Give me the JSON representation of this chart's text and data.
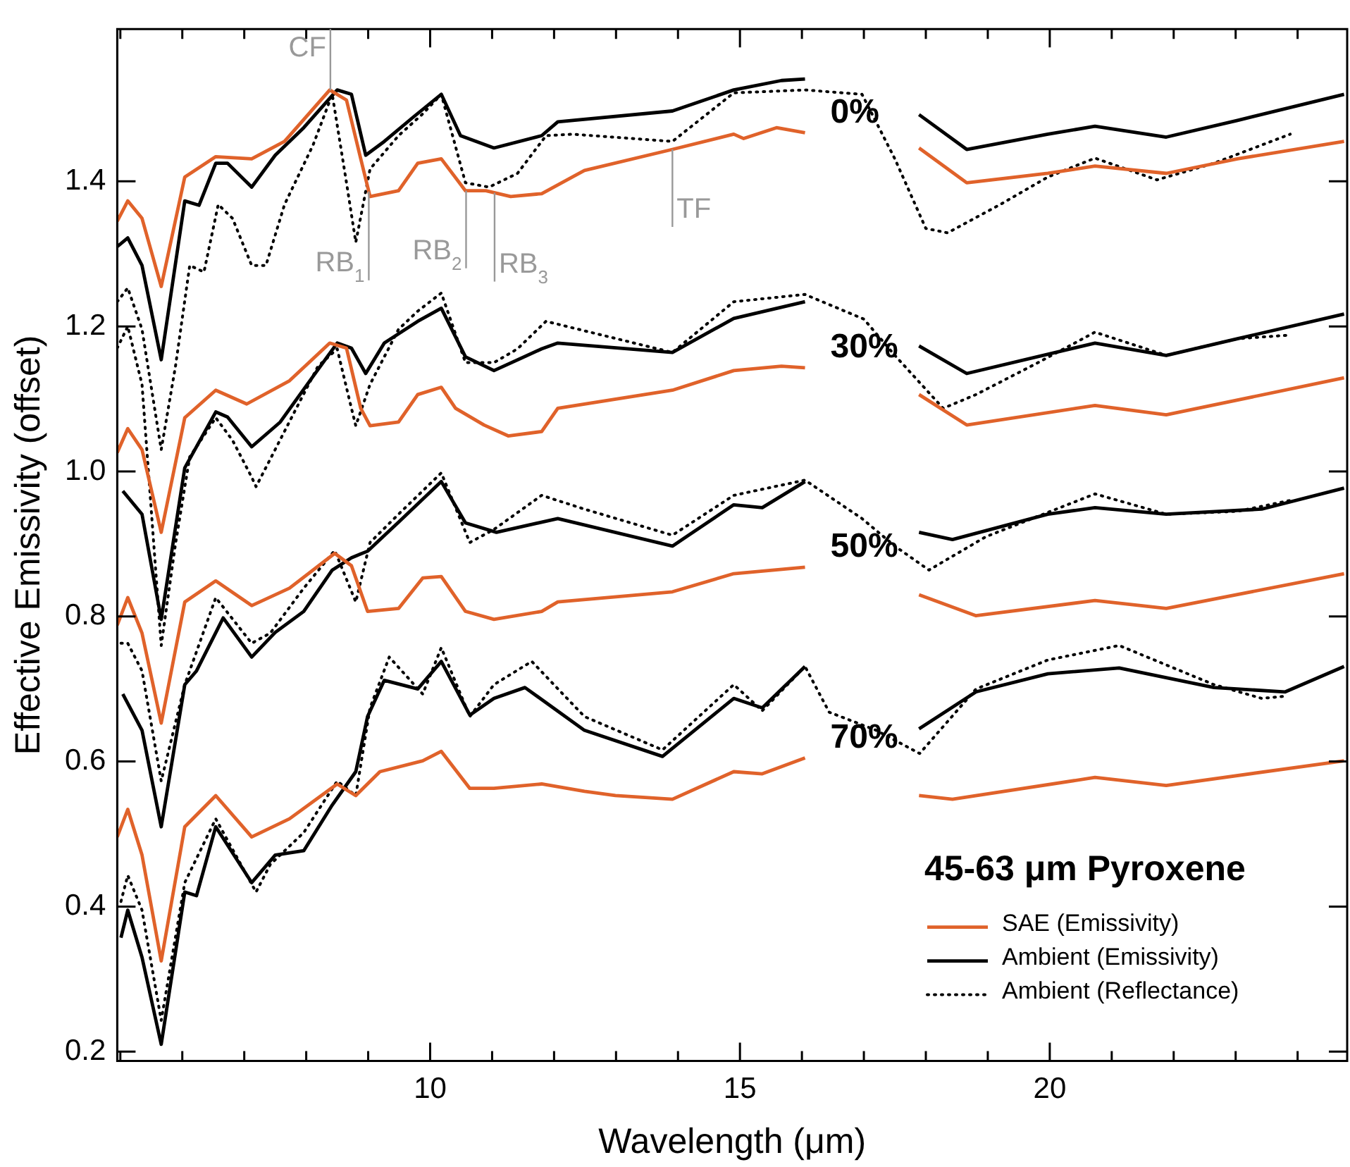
{
  "chart_data": {
    "type": "line",
    "xlabel": "Wavelength (μm)",
    "ylabel": "Effective Emissivity (offset)",
    "legend_title": "45-63 μm Pyroxene",
    "legend": "bottom right",
    "marker": "none",
    "xlim": [
      4.95,
      24.8
    ],
    "ylim": [
      0.187,
      1.61
    ],
    "xticks": [
      {
        "value": 5,
        "label": null
      },
      {
        "value": 6,
        "label": null
      },
      {
        "value": 7,
        "label": null
      },
      {
        "value": 8,
        "label": null
      },
      {
        "value": 9,
        "label": null
      },
      10,
      {
        "value": 11,
        "label": null
      },
      {
        "value": 12,
        "label": null
      },
      {
        "value": 13,
        "label": null
      },
      {
        "value": 14,
        "label": null
      },
      15,
      {
        "value": 16,
        "label": null
      },
      {
        "value": 17,
        "label": null
      },
      {
        "value": 18,
        "label": null
      },
      {
        "value": 19,
        "label": null
      },
      20,
      {
        "value": 21,
        "label": null
      },
      {
        "value": 22,
        "label": null
      },
      {
        "value": 23,
        "label": null
      },
      {
        "value": 24,
        "label": null
      }
    ],
    "yticks": [
      0.2,
      0.4,
      0.6,
      0.8,
      {
        "value": 1,
        "label": "1.0"
      },
      1.2,
      1.4
    ],
    "series": [
      {
        "name": "SAE (Emissivity)",
        "color": "#e0622a",
        "line_style": "solid",
        "x": [
          4.95,
          5.12,
          5.35,
          5.66,
          6.04,
          6.54,
          7.12,
          7.65,
          8.38,
          8.65,
          8.88,
          9.03,
          9.49,
          9.8,
          10.18,
          10.57,
          10.9,
          11.3,
          11.8,
          12.49,
          13.91,
          14.9,
          15.06,
          15.59,
          16.05,
          17,
          17.89,
          18.66,
          19.97,
          20.73,
          21.88,
          23.03,
          24.75
        ],
        "values": [
          1.345,
          1.373,
          1.349,
          1.255,
          1.406,
          1.434,
          1.431,
          1.455,
          1.526,
          1.512,
          1.431,
          1.379,
          1.387,
          1.425,
          1.431,
          1.387,
          1.387,
          1.379,
          1.383,
          1.415,
          1.444,
          1.465,
          1.459,
          1.474,
          1.467,
          null,
          1.446,
          1.398,
          1.411,
          1.421,
          1.411,
          1.431,
          1.455
        ]
      },
      {
        "name": "Ambient (Emissivity)",
        "color": "#000000",
        "line_style": "solid",
        "x": [
          4.95,
          5.12,
          5.35,
          5.66,
          6.04,
          6.27,
          6.54,
          6.73,
          7.12,
          7.5,
          7.96,
          8.5,
          8.73,
          8.96,
          9.26,
          9.72,
          10.18,
          10.49,
          11.03,
          11.8,
          12.06,
          13.91,
          14.9,
          15.67,
          16.05,
          17,
          17.89,
          18.66,
          19.97,
          20.73,
          21.88,
          23.03,
          24.75
        ],
        "values": [
          1.31,
          1.322,
          1.284,
          1.154,
          1.373,
          1.367,
          1.425,
          1.425,
          1.392,
          1.436,
          1.474,
          1.526,
          1.52,
          1.436,
          1.455,
          1.488,
          1.52,
          1.463,
          1.446,
          1.463,
          1.482,
          1.497,
          1.526,
          1.539,
          1.541,
          null,
          1.492,
          1.444,
          1.465,
          1.476,
          1.461,
          1.484,
          1.52
        ]
      },
      {
        "name": "Ambient (Reflectance)",
        "color": "#000000",
        "line_style": "dotted",
        "x": [
          4.95,
          5.12,
          5.35,
          5.66,
          5.89,
          6.12,
          6.35,
          6.58,
          6.81,
          7.12,
          7.35,
          7.65,
          8.11,
          8.42,
          8.65,
          8.8,
          9.03,
          9.49,
          9.88,
          10.18,
          10.57,
          10.95,
          11.41,
          11.87,
          12.3,
          13.91,
          14.9,
          16.05,
          16.97,
          17.5,
          18.0,
          18.35,
          19.2,
          19.97,
          20.73,
          21.73,
          22.65,
          23.88
        ],
        "values": [
          1.234,
          1.253,
          1.196,
          1.03,
          1.145,
          1.284,
          1.275,
          1.368,
          1.349,
          1.284,
          1.284,
          1.368,
          1.45,
          1.52,
          1.398,
          1.316,
          1.417,
          1.463,
          1.493,
          1.52,
          1.398,
          1.392,
          1.411,
          1.463,
          1.465,
          1.455,
          1.522,
          1.526,
          1.52,
          1.431,
          1.335,
          1.329,
          1.368,
          1.406,
          1.432,
          1.402,
          1.425,
          1.465
        ]
      },
      {
        "color": "#e0622a",
        "line_style": "solid",
        "x": [
          4.95,
          5.12,
          5.35,
          5.66,
          6.04,
          6.54,
          7.04,
          7.73,
          8.38,
          8.65,
          8.88,
          9.03,
          9.49,
          9.8,
          10.18,
          10.41,
          10.87,
          11.26,
          11.8,
          12.06,
          13.91,
          14.9,
          15.67,
          16.05,
          17,
          17.89,
          18.66,
          20.73,
          21.88,
          24.75
        ],
        "values": [
          1.026,
          1.059,
          1.03,
          0.916,
          1.074,
          1.112,
          1.093,
          1.125,
          1.177,
          1.17,
          1.087,
          1.063,
          1.068,
          1.106,
          1.116,
          1.087,
          1.064,
          1.049,
          1.055,
          1.087,
          1.112,
          1.139,
          1.145,
          1.143,
          null,
          1.106,
          1.064,
          1.091,
          1.078,
          1.129
        ]
      },
      {
        "color": "#000000",
        "line_style": "solid",
        "x": [
          5.04,
          5.35,
          5.66,
          6.04,
          6.54,
          6.73,
          7.12,
          7.58,
          8.11,
          8.5,
          8.73,
          8.96,
          9.26,
          9.8,
          10.18,
          10.57,
          11.03,
          11.8,
          12.06,
          13.91,
          14.9,
          16.05,
          17,
          17.89,
          18.66,
          20.73,
          21.88,
          23.03,
          24.75
        ],
        "values": [
          0.973,
          0.941,
          0.796,
          1.005,
          1.082,
          1.075,
          1.034,
          1.068,
          1.131,
          1.177,
          1.17,
          1.135,
          1.177,
          1.207,
          1.225,
          1.158,
          1.139,
          1.169,
          1.177,
          1.164,
          1.211,
          1.234,
          null,
          1.173,
          1.135,
          1.177,
          1.16,
          1.183,
          1.217
        ]
      },
      {
        "color": "#000000",
        "line_style": "dotted",
        "x": [
          4.95,
          5.12,
          5.35,
          5.66,
          5.89,
          6.12,
          6.54,
          6.81,
          7.12,
          7.19,
          7.42,
          7.81,
          8.19,
          8.5,
          8.73,
          8.8,
          9.03,
          9.49,
          9.8,
          10.18,
          10.57,
          11.03,
          11.41,
          11.87,
          13.91,
          14.9,
          16.05,
          17.0,
          17.5,
          18.28,
          18.81,
          19.81,
          20.73,
          21.88,
          23.03,
          23.88
        ],
        "values": [
          1.17,
          1.2,
          1.12,
          0.76,
          0.9,
          1.02,
          1.074,
          1.043,
          0.992,
          0.979,
          1.017,
          1.082,
          1.145,
          1.169,
          1.087,
          1.063,
          1.12,
          1.196,
          1.221,
          1.246,
          1.15,
          1.15,
          1.169,
          1.207,
          1.164,
          1.234,
          1.244,
          1.21,
          1.16,
          1.087,
          1.106,
          1.15,
          1.192,
          1.16,
          1.183,
          1.188
        ]
      },
      {
        "color": "#e0622a",
        "line_style": "solid",
        "x": [
          4.95,
          5.12,
          5.35,
          5.66,
          6.04,
          6.54,
          7.12,
          7.73,
          8.46,
          8.73,
          8.99,
          9.49,
          9.88,
          10.18,
          10.57,
          11.03,
          11.8,
          12.06,
          13.91,
          14.9,
          16.05,
          17,
          17.89,
          18.81,
          20.73,
          21.88,
          24.75
        ],
        "values": [
          0.788,
          0.826,
          0.777,
          0.653,
          0.82,
          0.849,
          0.815,
          0.839,
          0.887,
          0.87,
          0.807,
          0.811,
          0.853,
          0.855,
          0.807,
          0.796,
          0.807,
          0.82,
          0.834,
          0.859,
          0.868,
          null,
          0.83,
          0.801,
          0.822,
          0.811,
          0.859
        ]
      },
      {
        "color": "#000000",
        "line_style": "solid",
        "x": [
          5.04,
          5.35,
          5.66,
          6.04,
          6.23,
          6.66,
          7.12,
          7.5,
          7.96,
          8.42,
          8.73,
          8.99,
          9.49,
          10.18,
          10.57,
          11.07,
          12.06,
          13.91,
          14.9,
          15.36,
          16.05,
          17,
          17.89,
          18.43,
          19.97,
          20.73,
          21.88,
          23.42,
          24.75
        ],
        "values": [
          0.693,
          0.643,
          0.51,
          0.706,
          0.725,
          0.798,
          0.744,
          0.778,
          0.807,
          0.864,
          0.881,
          0.89,
          0.93,
          0.986,
          0.929,
          0.916,
          0.935,
          0.897,
          0.954,
          0.95,
          0.986,
          null,
          0.916,
          0.906,
          0.941,
          0.95,
          0.941,
          0.948,
          0.977
        ]
      },
      {
        "color": "#000000",
        "line_style": "dotted",
        "x": [
          5.01,
          5.12,
          5.35,
          5.66,
          6.04,
          6.54,
          7.12,
          7.42,
          7.96,
          8.46,
          8.8,
          9.03,
          9.49,
          10.18,
          10.64,
          11.03,
          11.8,
          12.49,
          13.91,
          14.9,
          16.05,
          16.97,
          17.5,
          18.05,
          18.97,
          20.73,
          21.88,
          23.03,
          23.88
        ],
        "values": [
          0.763,
          0.763,
          0.725,
          0.573,
          0.706,
          0.826,
          0.763,
          0.777,
          0.839,
          0.891,
          0.82,
          0.902,
          0.941,
          0.998,
          0.902,
          0.92,
          0.967,
          0.948,
          0.912,
          0.967,
          0.988,
          0.935,
          0.897,
          0.864,
          0.91,
          0.969,
          0.941,
          0.945,
          0.96
        ]
      },
      {
        "color": "#e0622a",
        "line_style": "solid",
        "x": [
          4.95,
          5.12,
          5.35,
          5.66,
          6.04,
          6.54,
          7.12,
          7.73,
          8.5,
          8.8,
          9.19,
          9.88,
          10.18,
          10.64,
          11.03,
          11.8,
          12.49,
          12.99,
          13.91,
          14.9,
          15.36,
          16.05,
          17,
          17.89,
          18.43,
          20.73,
          21.88,
          24.75
        ],
        "values": [
          0.496,
          0.534,
          0.471,
          0.325,
          0.51,
          0.553,
          0.496,
          0.521,
          0.569,
          0.553,
          0.586,
          0.601,
          0.614,
          0.563,
          0.563,
          0.569,
          0.559,
          0.553,
          0.548,
          0.586,
          0.583,
          0.605,
          null,
          0.553,
          0.548,
          0.578,
          0.567,
          0.601
        ]
      },
      {
        "color": "#000000",
        "line_style": "solid",
        "x": [
          5.01,
          5.12,
          5.35,
          5.66,
          6.04,
          6.23,
          6.54,
          7.12,
          7.5,
          7.96,
          8.42,
          8.8,
          8.99,
          9.26,
          9.8,
          10.18,
          10.64,
          11.03,
          11.53,
          12.49,
          13.75,
          14.9,
          15.36,
          16.05,
          17,
          17.89,
          18.81,
          19.97,
          21.12,
          22.65,
          23.8,
          24.75
        ],
        "values": [
          0.357,
          0.395,
          0.33,
          0.21,
          0.42,
          0.415,
          0.51,
          0.433,
          0.471,
          0.477,
          0.54,
          0.586,
          0.662,
          0.712,
          0.7,
          0.738,
          0.664,
          0.687,
          0.702,
          0.643,
          0.607,
          0.687,
          0.674,
          0.731,
          null,
          0.645,
          0.696,
          0.721,
          0.729,
          0.702,
          0.696,
          0.731
        ]
      },
      {
        "color": "#000000",
        "line_style": "dotted",
        "x": [
          5.01,
          5.12,
          5.35,
          5.66,
          6.04,
          6.54,
          7.19,
          7.42,
          7.96,
          8.5,
          8.8,
          9.03,
          9.34,
          9.88,
          10.18,
          10.64,
          11.03,
          11.64,
          12.49,
          13.75,
          14.9,
          15.36,
          16.05,
          16.44,
          17.2,
          17.9,
          18.81,
          19.97,
          21.12,
          22.65,
          23.42,
          23.8
        ],
        "values": [
          0.407,
          0.443,
          0.395,
          0.243,
          0.433,
          0.521,
          0.42,
          0.458,
          0.502,
          0.573,
          0.553,
          0.674,
          0.744,
          0.693,
          0.757,
          0.662,
          0.706,
          0.738,
          0.662,
          0.616,
          0.706,
          0.67,
          0.731,
          0.668,
          0.643,
          0.611,
          0.7,
          0.74,
          0.76,
          0.706,
          0.687,
          0.69
        ]
      }
    ],
    "ref_lines": [
      {
        "axis": "x",
        "value": 8.39,
        "label": "CF",
        "color": "#999999"
      },
      {
        "axis": "x",
        "value": 9.01,
        "label": "RB$_{1}$",
        "color": "#999999"
      },
      {
        "axis": "x",
        "value": 10.58,
        "label": "RB$_{2}$",
        "color": "#999999"
      },
      {
        "axis": "x",
        "value": 11.04,
        "label": "RB$_{3}$",
        "color": "#999999"
      },
      {
        "axis": "x",
        "value": 13.91,
        "label": "TF",
        "color": "#999999"
      }
    ],
    "annotations": [
      "0%",
      "30%",
      "50%",
      "70%"
    ]
  }
}
